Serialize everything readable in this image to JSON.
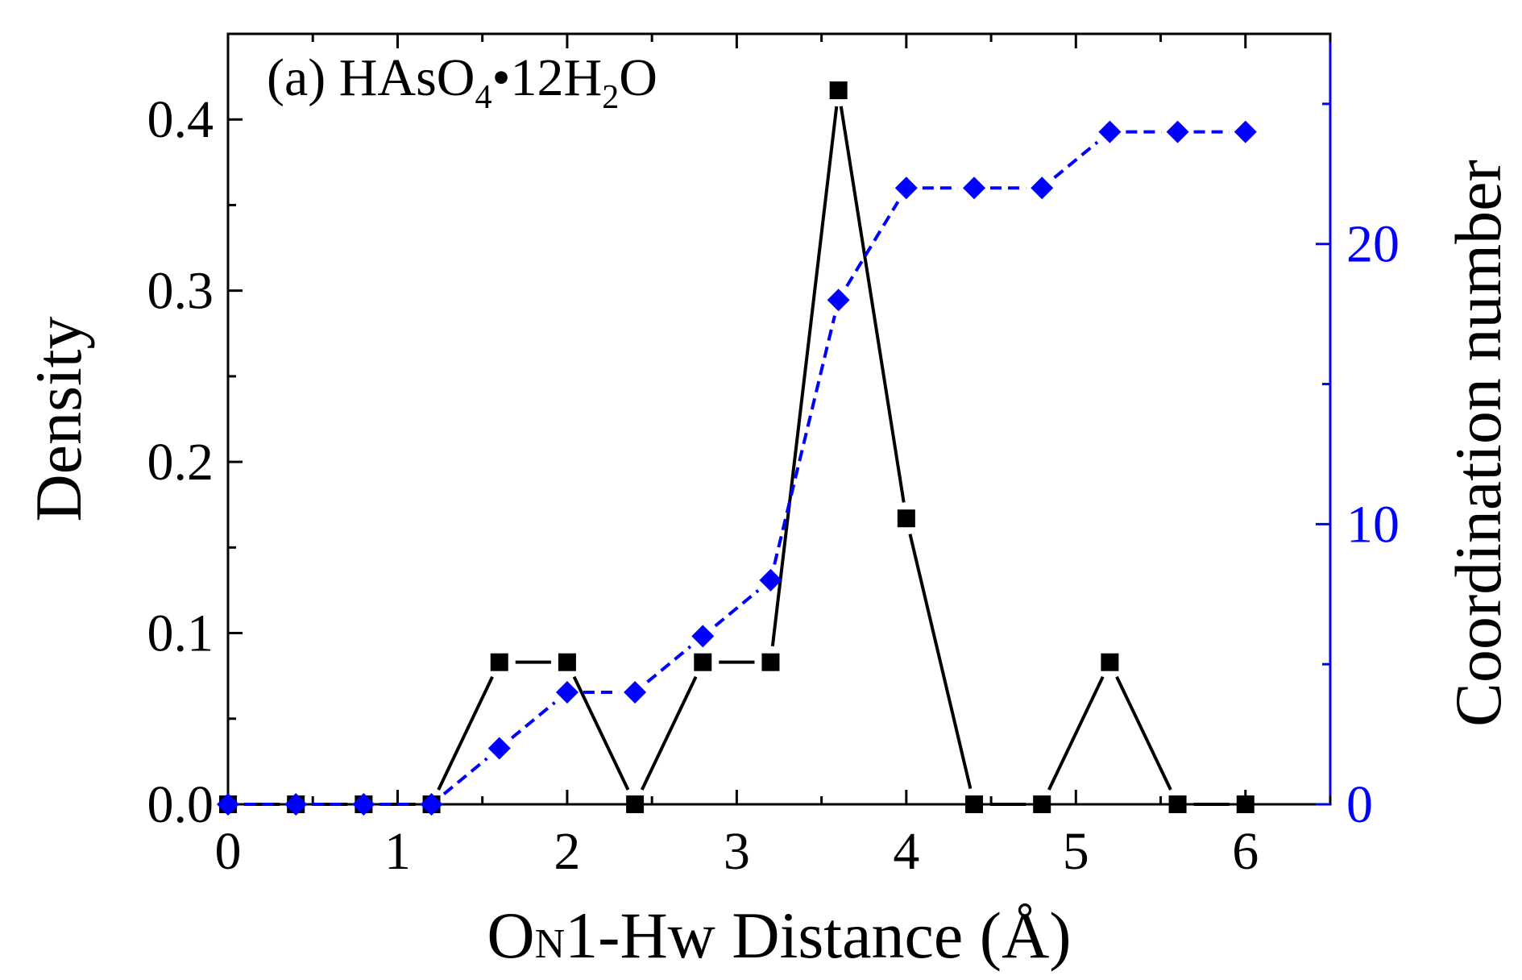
{
  "chart_data": {
    "type": "line",
    "annotation": {
      "prefix": "(a) HAsO",
      "sub1": "4",
      "bullet": "•",
      "mid": "12H",
      "sub2": "2",
      "suffix": "O"
    },
    "xlabel": {
      "main": "O",
      "sub": "N",
      "rest": "1-Hw Distance (Å)"
    },
    "ylabel": "Density",
    "y2label": "Coordination number",
    "xlim": [
      0,
      6.5
    ],
    "ylim": [
      0,
      0.45
    ],
    "y2lim": [
      0,
      27.5
    ],
    "xticks": [
      0,
      1,
      2,
      3,
      4,
      5,
      6
    ],
    "xtick_labels": [
      "0",
      "1",
      "2",
      "3",
      "4",
      "5",
      "6"
    ],
    "yticks": [
      0,
      0.1,
      0.2,
      0.3,
      0.4
    ],
    "ytick_labels": [
      "0.0",
      "0.1",
      "0.2",
      "0.3",
      "0.4"
    ],
    "y2ticks": [
      0,
      10,
      20
    ],
    "y2tick_labels": [
      "0",
      "10",
      "20"
    ],
    "colors": {
      "density": "#000000",
      "coordination": "#0000ff",
      "axis": "#000000",
      "right_axis": "#0000ff"
    },
    "series": [
      {
        "name": "Density",
        "axis": "left",
        "marker": "square",
        "linestyle": "solid",
        "x": [
          0,
          0.4,
          0.8,
          1.2,
          1.6,
          2.0,
          2.4,
          2.8,
          3.2,
          3.6,
          4.0,
          4.4,
          4.8,
          5.2,
          5.6,
          6.0
        ],
        "y": [
          0,
          0,
          0,
          0,
          0.083,
          0.083,
          0,
          0.083,
          0.083,
          0.417,
          0.167,
          0,
          0,
          0.083,
          0,
          0
        ]
      },
      {
        "name": "Coordination number",
        "axis": "right",
        "marker": "diamond",
        "linestyle": "dashed",
        "x": [
          0,
          0.4,
          0.8,
          1.2,
          1.6,
          2.0,
          2.4,
          2.8,
          3.2,
          3.6,
          4.0,
          4.4,
          4.8,
          5.2,
          5.6,
          6.0
        ],
        "y": [
          0,
          0,
          0,
          0,
          2,
          4,
          4,
          6,
          8,
          18,
          22,
          22,
          22,
          24,
          24,
          24
        ]
      }
    ]
  }
}
